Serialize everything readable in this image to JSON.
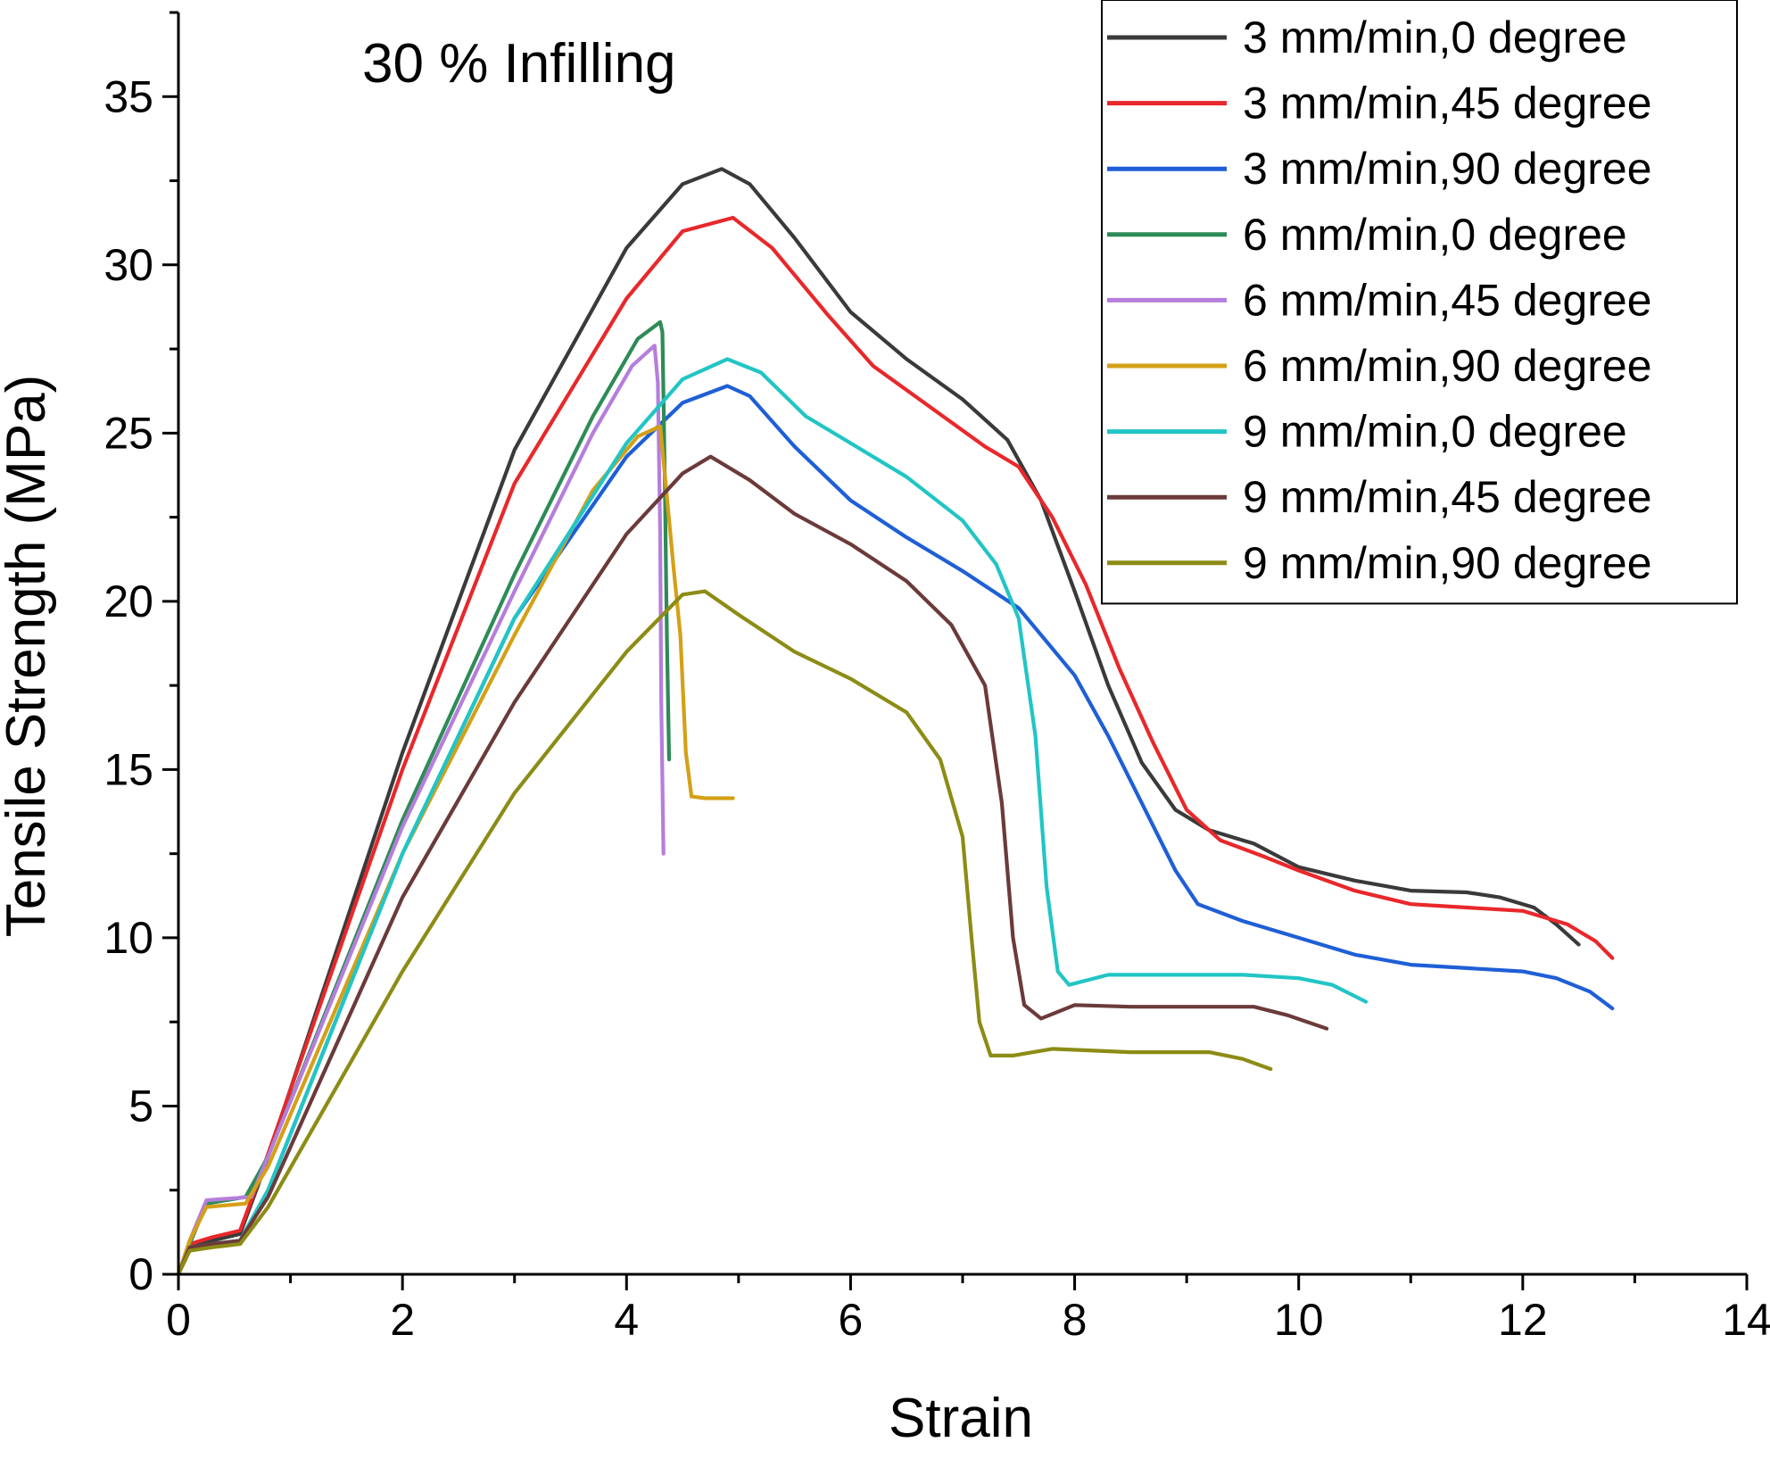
{
  "chart_data": {
    "type": "line",
    "annotation": "30 % Infilling",
    "xlabel": "Strain",
    "ylabel": "Tensile Strength (MPa)",
    "xlim": [
      0,
      14
    ],
    "ylim": [
      0,
      37.5
    ],
    "xticks": [
      0,
      2,
      4,
      6,
      8,
      10,
      12,
      14
    ],
    "yticks": [
      0,
      5,
      10,
      15,
      20,
      25,
      30,
      35
    ],
    "grid": false,
    "legend_position": "top-right",
    "series": [
      {
        "name": "3 mm/min,0 degree",
        "color": "#3a3a3a",
        "points": [
          [
            0,
            0
          ],
          [
            0.1,
            0.8
          ],
          [
            0.3,
            1.0
          ],
          [
            0.55,
            1.2
          ],
          [
            0.75,
            3.0
          ],
          [
            2,
            15.5
          ],
          [
            3,
            24.5
          ],
          [
            4,
            30.5
          ],
          [
            4.5,
            32.4
          ],
          [
            4.85,
            32.85
          ],
          [
            5.1,
            32.4
          ],
          [
            5.5,
            30.8
          ],
          [
            6,
            28.6
          ],
          [
            6.5,
            27.2
          ],
          [
            7,
            26.0
          ],
          [
            7.4,
            24.8
          ],
          [
            7.7,
            23.0
          ],
          [
            8,
            20.3
          ],
          [
            8.3,
            17.5
          ],
          [
            8.6,
            15.2
          ],
          [
            8.9,
            13.8
          ],
          [
            9.2,
            13.2
          ],
          [
            9.6,
            12.8
          ],
          [
            10,
            12.1
          ],
          [
            10.5,
            11.7
          ],
          [
            11,
            11.4
          ],
          [
            11.5,
            11.35
          ],
          [
            11.8,
            11.2
          ],
          [
            12.1,
            10.9
          ],
          [
            12.3,
            10.4
          ],
          [
            12.5,
            9.8
          ]
        ]
      },
      {
        "name": "3 mm/min,45 degree",
        "color": "#e8282b",
        "points": [
          [
            0,
            0
          ],
          [
            0.1,
            0.9
          ],
          [
            0.3,
            1.1
          ],
          [
            0.55,
            1.3
          ],
          [
            0.75,
            3.1
          ],
          [
            2,
            15.0
          ],
          [
            3,
            23.5
          ],
          [
            4,
            29.0
          ],
          [
            4.5,
            31.0
          ],
          [
            4.95,
            31.4
          ],
          [
            5.3,
            30.5
          ],
          [
            5.8,
            28.5
          ],
          [
            6.2,
            27.0
          ],
          [
            6.7,
            25.8
          ],
          [
            7.2,
            24.6
          ],
          [
            7.5,
            24.0
          ],
          [
            7.8,
            22.5
          ],
          [
            8.1,
            20.5
          ],
          [
            8.4,
            18.0
          ],
          [
            8.7,
            15.8
          ],
          [
            9,
            13.8
          ],
          [
            9.3,
            12.9
          ],
          [
            9.7,
            12.4
          ],
          [
            10,
            12.0
          ],
          [
            10.5,
            11.4
          ],
          [
            11,
            11.0
          ],
          [
            11.5,
            10.9
          ],
          [
            12,
            10.8
          ],
          [
            12.4,
            10.4
          ],
          [
            12.65,
            9.9
          ],
          [
            12.8,
            9.4
          ]
        ]
      },
      {
        "name": "3 mm/min,90 degree",
        "color": "#1f5fd6",
        "points": [
          [
            0,
            0
          ],
          [
            0.1,
            0.8
          ],
          [
            0.3,
            0.9
          ],
          [
            0.55,
            1.0
          ],
          [
            0.8,
            2.5
          ],
          [
            2,
            12.5
          ],
          [
            3,
            19.5
          ],
          [
            4,
            24.3
          ],
          [
            4.5,
            25.9
          ],
          [
            4.9,
            26.4
          ],
          [
            5.1,
            26.1
          ],
          [
            5.5,
            24.6
          ],
          [
            6,
            23.0
          ],
          [
            6.5,
            21.9
          ],
          [
            7,
            20.9
          ],
          [
            7.5,
            19.8
          ],
          [
            8,
            17.8
          ],
          [
            8.3,
            16.0
          ],
          [
            8.6,
            14.0
          ],
          [
            8.9,
            12.0
          ],
          [
            9.1,
            11.0
          ],
          [
            9.5,
            10.5
          ],
          [
            10,
            10.0
          ],
          [
            10.5,
            9.5
          ],
          [
            11,
            9.2
          ],
          [
            11.5,
            9.1
          ],
          [
            12,
            9.0
          ],
          [
            12.3,
            8.8
          ],
          [
            12.6,
            8.4
          ],
          [
            12.8,
            7.9
          ]
        ]
      },
      {
        "name": "6 mm/min,0 degree",
        "color": "#2e8b57",
        "points": [
          [
            0,
            0
          ],
          [
            0.1,
            0.9
          ],
          [
            0.25,
            2.1
          ],
          [
            0.6,
            2.3
          ],
          [
            0.8,
            3.5
          ],
          [
            2,
            13.5
          ],
          [
            3,
            20.8
          ],
          [
            3.7,
            25.5
          ],
          [
            4.1,
            27.8
          ],
          [
            4.3,
            28.3
          ],
          [
            4.32,
            28.0
          ],
          [
            4.34,
            24.0
          ],
          [
            4.36,
            19.0
          ],
          [
            4.38,
            15.3
          ]
        ]
      },
      {
        "name": "6 mm/min,45 degree",
        "color": "#b57edc",
        "points": [
          [
            0,
            0
          ],
          [
            0.1,
            1.0
          ],
          [
            0.25,
            2.2
          ],
          [
            0.65,
            2.3
          ],
          [
            0.8,
            3.5
          ],
          [
            2,
            13.3
          ],
          [
            3,
            20.3
          ],
          [
            3.7,
            25.0
          ],
          [
            4.05,
            27.0
          ],
          [
            4.25,
            27.6
          ],
          [
            4.28,
            26.5
          ],
          [
            4.3,
            22.0
          ],
          [
            4.31,
            17.0
          ],
          [
            4.33,
            12.5
          ]
        ]
      },
      {
        "name": "6 mm/min,90 degree",
        "color": "#d4a017",
        "points": [
          [
            0,
            0
          ],
          [
            0.1,
            1.0
          ],
          [
            0.25,
            2.0
          ],
          [
            0.6,
            2.1
          ],
          [
            0.8,
            3.2
          ],
          [
            2,
            12.5
          ],
          [
            3,
            19.0
          ],
          [
            3.7,
            23.3
          ],
          [
            4.1,
            24.9
          ],
          [
            4.3,
            25.2
          ],
          [
            4.35,
            23.5
          ],
          [
            4.42,
            21.0
          ],
          [
            4.48,
            19.0
          ],
          [
            4.53,
            15.5
          ],
          [
            4.58,
            14.2
          ],
          [
            4.7,
            14.15
          ],
          [
            4.95,
            14.15
          ]
        ]
      },
      {
        "name": "9 mm/min,0 degree",
        "color": "#22c5c5",
        "points": [
          [
            0,
            0
          ],
          [
            0.1,
            0.8
          ],
          [
            0.3,
            0.9
          ],
          [
            0.55,
            1.0
          ],
          [
            0.8,
            2.5
          ],
          [
            2,
            12.5
          ],
          [
            3,
            19.5
          ],
          [
            4,
            24.7
          ],
          [
            4.5,
            26.6
          ],
          [
            4.9,
            27.2
          ],
          [
            5.2,
            26.8
          ],
          [
            5.6,
            25.5
          ],
          [
            6,
            24.7
          ],
          [
            6.5,
            23.7
          ],
          [
            7,
            22.4
          ],
          [
            7.3,
            21.1
          ],
          [
            7.5,
            19.5
          ],
          [
            7.65,
            16.0
          ],
          [
            7.75,
            11.5
          ],
          [
            7.85,
            9.0
          ],
          [
            7.95,
            8.6
          ],
          [
            8.3,
            8.9
          ],
          [
            8.8,
            8.9
          ],
          [
            9.5,
            8.9
          ],
          [
            10,
            8.8
          ],
          [
            10.3,
            8.6
          ],
          [
            10.6,
            8.1
          ]
        ]
      },
      {
        "name": "9 mm/min,45 degree",
        "color": "#6b3a3a",
        "points": [
          [
            0,
            0
          ],
          [
            0.1,
            0.8
          ],
          [
            0.3,
            0.9
          ],
          [
            0.55,
            1.0
          ],
          [
            0.8,
            2.3
          ],
          [
            2,
            11.2
          ],
          [
            3,
            17.0
          ],
          [
            4,
            22.0
          ],
          [
            4.5,
            23.8
          ],
          [
            4.75,
            24.3
          ],
          [
            5.1,
            23.6
          ],
          [
            5.5,
            22.6
          ],
          [
            6,
            21.7
          ],
          [
            6.5,
            20.6
          ],
          [
            6.9,
            19.3
          ],
          [
            7.2,
            17.5
          ],
          [
            7.35,
            14.0
          ],
          [
            7.45,
            10.0
          ],
          [
            7.55,
            8.0
          ],
          [
            7.7,
            7.6
          ],
          [
            8,
            8.0
          ],
          [
            8.5,
            7.95
          ],
          [
            9,
            7.95
          ],
          [
            9.6,
            7.95
          ],
          [
            9.9,
            7.7
          ],
          [
            10.25,
            7.3
          ]
        ]
      },
      {
        "name": "9 mm/min,90 degree",
        "color": "#8c8c16",
        "points": [
          [
            0,
            0
          ],
          [
            0.1,
            0.7
          ],
          [
            0.3,
            0.8
          ],
          [
            0.55,
            0.9
          ],
          [
            0.8,
            2.0
          ],
          [
            2,
            9.0
          ],
          [
            3,
            14.3
          ],
          [
            4,
            18.5
          ],
          [
            4.5,
            20.2
          ],
          [
            4.7,
            20.3
          ],
          [
            5,
            19.6
          ],
          [
            5.5,
            18.5
          ],
          [
            6,
            17.7
          ],
          [
            6.5,
            16.7
          ],
          [
            6.8,
            15.3
          ],
          [
            7,
            13.0
          ],
          [
            7.08,
            10.0
          ],
          [
            7.15,
            7.5
          ],
          [
            7.25,
            6.5
          ],
          [
            7.45,
            6.5
          ],
          [
            7.8,
            6.7
          ],
          [
            8.5,
            6.6
          ],
          [
            9.2,
            6.6
          ],
          [
            9.5,
            6.4
          ],
          [
            9.75,
            6.1
          ]
        ]
      }
    ]
  }
}
